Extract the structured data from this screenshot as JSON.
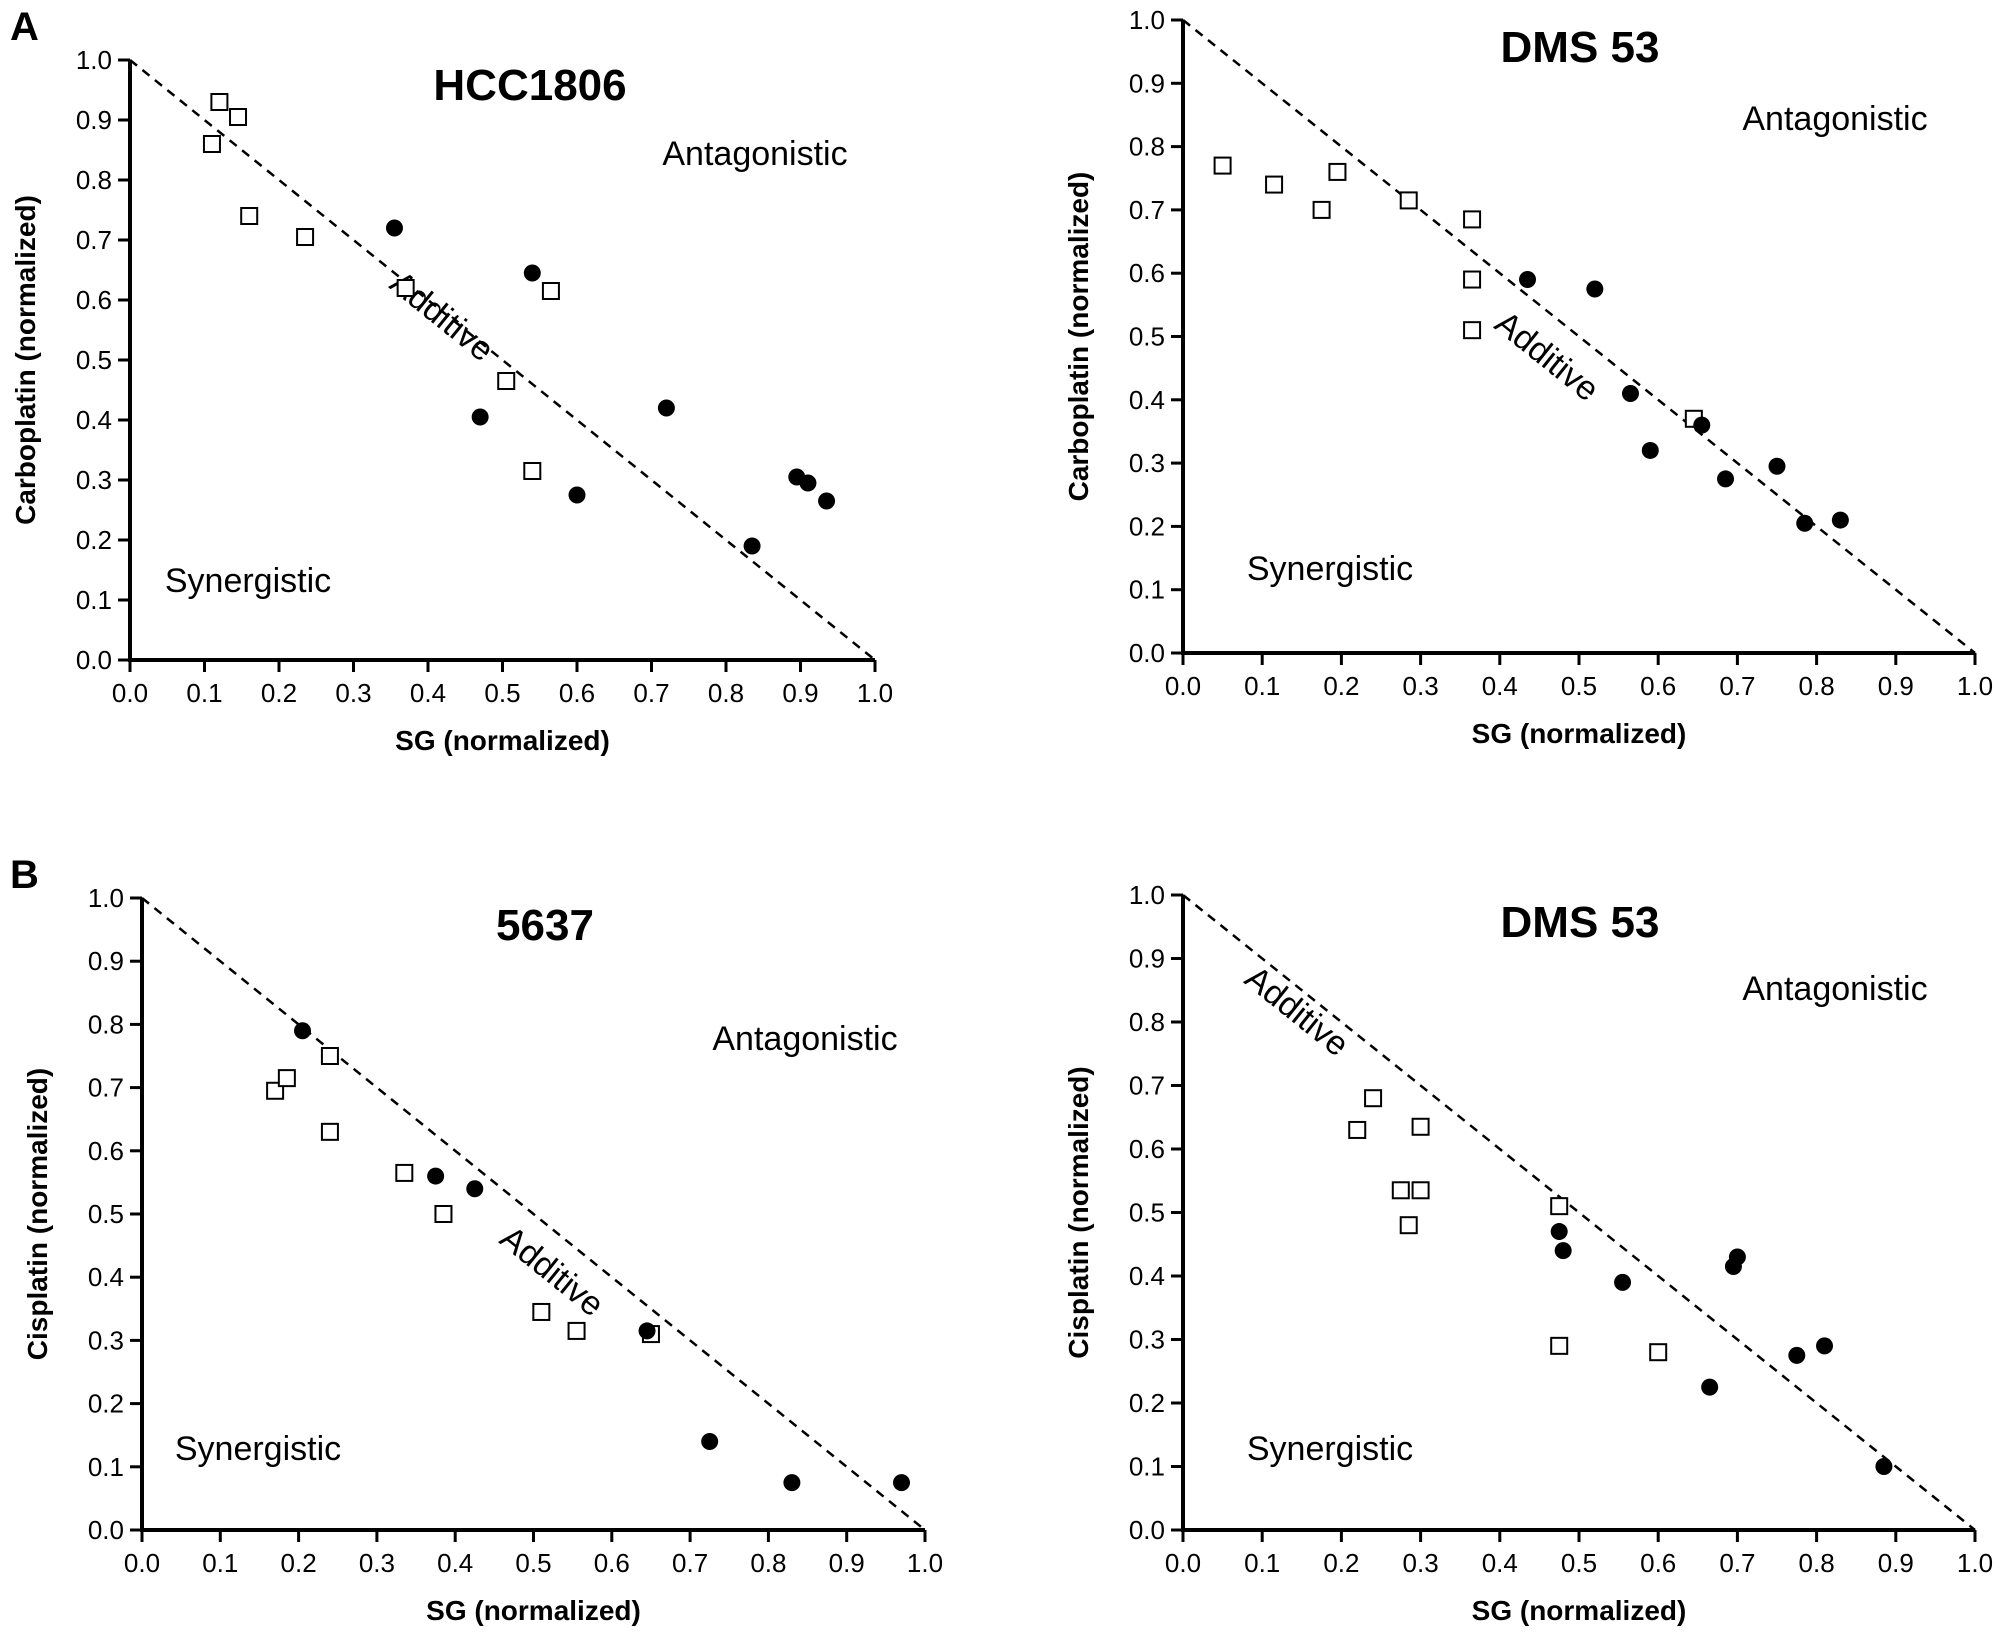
{
  "panels": [
    "A",
    "B"
  ],
  "chart_data": [
    {
      "type": "scatter",
      "title": "HCC1806",
      "xlabel": "SG (normalized)",
      "ylabel": "Carboplatin (normalized)",
      "xlim": [
        0,
        1
      ],
      "ylim": [
        0,
        1
      ],
      "ticks": [
        "0.0",
        "0.1",
        "0.2",
        "0.3",
        "0.4",
        "0.5",
        "0.6",
        "0.7",
        "0.8",
        "0.9",
        "1.0"
      ],
      "grid": false,
      "annotations": {
        "additive": "Additive",
        "antagonistic": "Antagonistic",
        "synergistic": "Synergistic"
      },
      "line": {
        "style": "dashed",
        "from": [
          0,
          1
        ],
        "to": [
          1,
          0
        ]
      },
      "series": [
        {
          "marker": "open-square",
          "points": [
            [
              0.11,
              0.86
            ],
            [
              0.12,
              0.93
            ],
            [
              0.145,
              0.905
            ],
            [
              0.16,
              0.74
            ],
            [
              0.235,
              0.705
            ],
            [
              0.37,
              0.62
            ],
            [
              0.505,
              0.465
            ],
            [
              0.54,
              0.315
            ],
            [
              0.565,
              0.615
            ]
          ]
        },
        {
          "marker": "filled-circle",
          "points": [
            [
              0.355,
              0.72
            ],
            [
              0.47,
              0.405
            ],
            [
              0.54,
              0.645
            ],
            [
              0.6,
              0.275
            ],
            [
              0.72,
              0.42
            ],
            [
              0.835,
              0.19
            ],
            [
              0.895,
              0.305
            ],
            [
              0.91,
              0.295
            ],
            [
              0.935,
              0.265
            ]
          ]
        }
      ]
    },
    {
      "type": "scatter",
      "title": "DMS 53",
      "xlabel": "SG (normalized)",
      "ylabel": "Carboplatin (normalized)",
      "xlim": [
        0,
        1
      ],
      "ylim": [
        0,
        1
      ],
      "ticks": [
        "0.0",
        "0.1",
        "0.2",
        "0.3",
        "0.4",
        "0.5",
        "0.6",
        "0.7",
        "0.8",
        "0.9",
        "1.0"
      ],
      "grid": false,
      "annotations": {
        "additive": "Additive",
        "antagonistic": "Antagonistic",
        "synergistic": "Synergistic"
      },
      "line": {
        "style": "dashed",
        "from": [
          0,
          1
        ],
        "to": [
          1,
          0
        ]
      },
      "series": [
        {
          "marker": "open-square",
          "points": [
            [
              0.05,
              0.77
            ],
            [
              0.115,
              0.74
            ],
            [
              0.175,
              0.7
            ],
            [
              0.195,
              0.76
            ],
            [
              0.285,
              0.715
            ],
            [
              0.365,
              0.685
            ],
            [
              0.365,
              0.59
            ],
            [
              0.365,
              0.51
            ],
            [
              0.645,
              0.37
            ]
          ]
        },
        {
          "marker": "filled-circle",
          "points": [
            [
              0.435,
              0.59
            ],
            [
              0.52,
              0.575
            ],
            [
              0.565,
              0.41
            ],
            [
              0.59,
              0.32
            ],
            [
              0.655,
              0.36
            ],
            [
              0.685,
              0.275
            ],
            [
              0.75,
              0.295
            ],
            [
              0.785,
              0.205
            ],
            [
              0.83,
              0.21
            ]
          ]
        }
      ]
    },
    {
      "type": "scatter",
      "title": "5637",
      "xlabel": "SG (normalized)",
      "ylabel": "Cisplatin (normalized)",
      "xlim": [
        0,
        1
      ],
      "ylim": [
        0,
        1
      ],
      "ticks": [
        "0.0",
        "0.1",
        "0.2",
        "0.3",
        "0.4",
        "0.5",
        "0.6",
        "0.7",
        "0.8",
        "0.9",
        "1.0"
      ],
      "grid": false,
      "annotations": {
        "additive": "Additive",
        "antagonistic": "Antagonistic",
        "synergistic": "Synergistic"
      },
      "line": {
        "style": "dashed",
        "from": [
          0,
          1
        ],
        "to": [
          1,
          0
        ]
      },
      "series": [
        {
          "marker": "open-square",
          "points": [
            [
              0.17,
              0.695
            ],
            [
              0.185,
              0.715
            ],
            [
              0.24,
              0.75
            ],
            [
              0.24,
              0.63
            ],
            [
              0.335,
              0.565
            ],
            [
              0.385,
              0.5
            ],
            [
              0.51,
              0.345
            ],
            [
              0.555,
              0.315
            ],
            [
              0.65,
              0.31
            ]
          ]
        },
        {
          "marker": "filled-circle",
          "points": [
            [
              0.205,
              0.79
            ],
            [
              0.375,
              0.56
            ],
            [
              0.425,
              0.54
            ],
            [
              0.645,
              0.315
            ],
            [
              0.725,
              0.14
            ],
            [
              0.83,
              0.075
            ],
            [
              0.97,
              0.075
            ]
          ]
        }
      ]
    },
    {
      "type": "scatter",
      "title": "DMS 53",
      "xlabel": "SG (normalized)",
      "ylabel": "Cisplatin (normalized)",
      "xlim": [
        0,
        1
      ],
      "ylim": [
        0,
        1
      ],
      "ticks": [
        "0.0",
        "0.1",
        "0.2",
        "0.3",
        "0.4",
        "0.5",
        "0.6",
        "0.7",
        "0.8",
        "0.9",
        "1.0"
      ],
      "grid": false,
      "annotations": {
        "additive": "Additive",
        "antagonistic": "Antagonistic",
        "synergistic": "Synergistic"
      },
      "line": {
        "style": "dashed",
        "from": [
          0,
          1
        ],
        "to": [
          1,
          0
        ]
      },
      "series": [
        {
          "marker": "open-square",
          "points": [
            [
              0.22,
              0.63
            ],
            [
              0.24,
              0.68
            ],
            [
              0.275,
              0.535
            ],
            [
              0.285,
              0.48
            ],
            [
              0.3,
              0.635
            ],
            [
              0.3,
              0.535
            ],
            [
              0.475,
              0.51
            ],
            [
              0.475,
              0.29
            ],
            [
              0.6,
              0.28
            ]
          ]
        },
        {
          "marker": "filled-circle",
          "points": [
            [
              0.475,
              0.47
            ],
            [
              0.48,
              0.44
            ],
            [
              0.555,
              0.39
            ],
            [
              0.665,
              0.225
            ],
            [
              0.695,
              0.415
            ],
            [
              0.7,
              0.43
            ],
            [
              0.775,
              0.275
            ],
            [
              0.81,
              0.29
            ],
            [
              0.885,
              0.1
            ]
          ]
        }
      ]
    }
  ]
}
